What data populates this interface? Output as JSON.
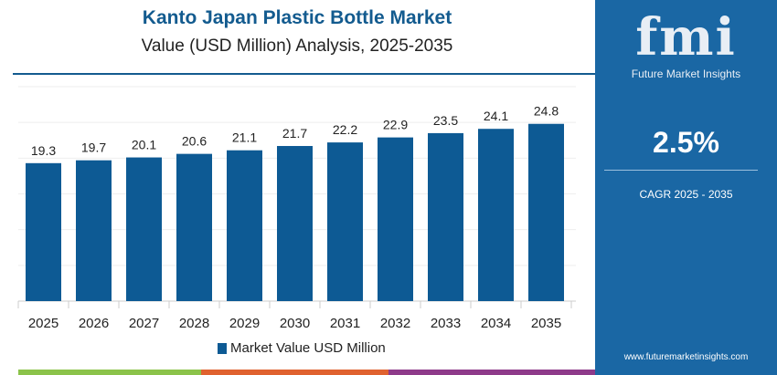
{
  "header": {
    "title": "Kanto Japan Plastic Bottle Market",
    "subtitle": "Value (USD Million) Analysis, 2025-2035"
  },
  "panel": {
    "logo_text": "fmi",
    "brand": "Future Market Insights",
    "cagr_value": "2.5%",
    "cagr_label": "CAGR 2025 - 2035",
    "url": "www.futuremarketinsights.com"
  },
  "colors": {
    "bar": "#0d5a94",
    "panel": "#1a67a4",
    "title": "#135b8f",
    "stripe": [
      "#8bc34a",
      "#e0622f",
      "#8e3a8a"
    ]
  },
  "chart_data": {
    "type": "bar",
    "categories": [
      "2025",
      "2026",
      "2027",
      "2028",
      "2029",
      "2030",
      "2031",
      "2032",
      "2033",
      "2034",
      "2035"
    ],
    "series": [
      {
        "name": "Market Value USD Million",
        "values": [
          19.3,
          19.7,
          20.1,
          20.6,
          21.1,
          21.7,
          22.2,
          22.9,
          23.5,
          24.1,
          24.8
        ]
      }
    ],
    "ylim": [
      0,
      30
    ],
    "grid": true,
    "legend": "bottom",
    "data_labels": true
  }
}
